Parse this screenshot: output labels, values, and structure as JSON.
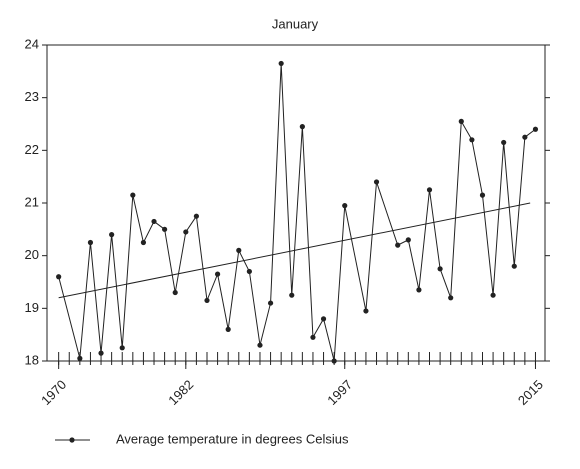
{
  "chart_data": {
    "type": "line",
    "title": "January",
    "x": [
      1970,
      1972,
      1973,
      1974,
      1975,
      1976,
      1977,
      1978,
      1979,
      1980,
      1981,
      1982,
      1983,
      1984,
      1985,
      1986,
      1987,
      1988,
      1989,
      1990,
      1991,
      1992,
      1993,
      1994,
      1995,
      1996,
      1997,
      1999,
      2000,
      2002,
      2003,
      2004,
      2005,
      2006,
      2007,
      2008,
      2009,
      2010,
      2011,
      2012,
      2013,
      2014,
      2015
    ],
    "series": [
      {
        "name": "Average temperature in degrees Celsius",
        "color": "#222222",
        "values": [
          19.6,
          18.05,
          20.25,
          18.15,
          20.4,
          18.25,
          21.15,
          20.25,
          20.65,
          20.5,
          19.3,
          20.45,
          20.75,
          19.15,
          19.65,
          18.6,
          20.1,
          19.7,
          18.3,
          19.1,
          23.65,
          19.25,
          22.45,
          18.45,
          18.8,
          18.0,
          20.95,
          18.95,
          21.4,
          20.2,
          20.3,
          19.35,
          21.25,
          19.75,
          19.2,
          22.55,
          22.2,
          21.15,
          19.25,
          22.15,
          19.8,
          22.25,
          22.4
        ]
      }
    ],
    "trendline": {
      "x": [
        1970,
        2014.5
      ],
      "values": [
        19.2,
        21.0
      ]
    },
    "xlim": [
      1968.9,
      2015.9
    ],
    "ylim": [
      18,
      24
    ],
    "xticks": [
      1970,
      1982,
      1997,
      2015
    ],
    "xminorticks": [
      1970,
      1971,
      1972,
      1973,
      1974,
      1975,
      1976,
      1977,
      1978,
      1979,
      1980,
      1981,
      1982,
      1983,
      1984,
      1985,
      1986,
      1987,
      1988,
      1989,
      1990,
      1991,
      1992,
      1993,
      1994,
      1995,
      1996,
      1997,
      1998,
      1999,
      2000,
      2001,
      2002,
      2003,
      2004,
      2005,
      2006,
      2007,
      2008,
      2009,
      2010,
      2011,
      2012,
      2013,
      2014,
      2015
    ],
    "yticks": [
      18,
      19,
      20,
      21,
      22,
      23,
      24
    ],
    "grid": false,
    "legend": "bottom"
  }
}
